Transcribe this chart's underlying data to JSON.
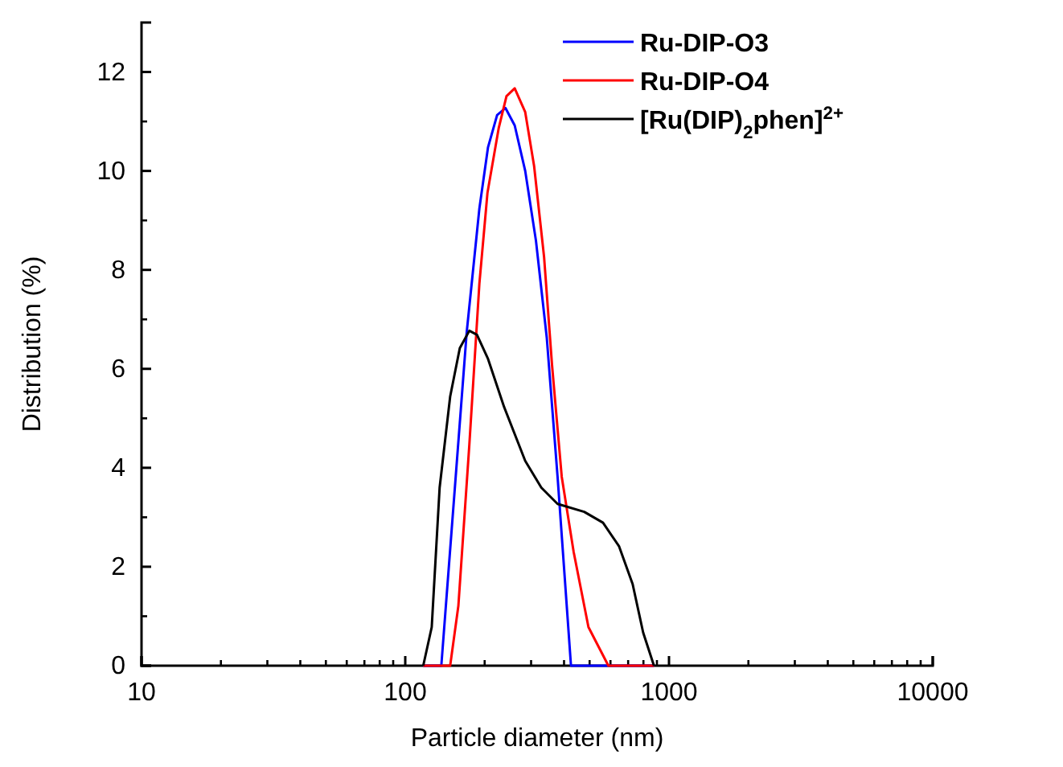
{
  "chart_data": {
    "type": "line",
    "xlabel": "Particle diameter (nm)",
    "ylabel": "Distribution (%)",
    "log": "x",
    "xlim": [
      10,
      10000
    ],
    "xticks": [
      10,
      100,
      1000,
      10000
    ],
    "ylim": [
      0,
      13
    ],
    "yticks": [
      0,
      2,
      4,
      6,
      8,
      10,
      12
    ],
    "grid": false,
    "legend": "top right",
    "marker": "none",
    "line_style": "solid",
    "series": [
      {
        "name": "Ru-DIP-O3",
        "color": "#0000ff",
        "x": [
          117,
          137,
          171,
          191,
          206,
          223,
          240,
          260,
          285,
          313,
          344,
          378,
          425,
          877
        ],
        "values": [
          0,
          0,
          6.74,
          9.24,
          10.48,
          11.13,
          11.27,
          10.92,
          10.0,
          8.59,
          6.63,
          3.82,
          0,
          0
        ]
      },
      {
        "name": "Ru-DIP-O4",
        "color": "#ff0000",
        "x": [
          117,
          148,
          159,
          175,
          191,
          205,
          226,
          242,
          260,
          285,
          308,
          336,
          360,
          392,
          435,
          495,
          589,
          877
        ],
        "values": [
          0,
          0,
          1.21,
          4.47,
          7.72,
          9.56,
          10.86,
          11.51,
          11.67,
          11.19,
          10.1,
          8.26,
          6.09,
          3.82,
          2.3,
          0.78,
          0,
          0
        ]
      },
      {
        "name": "[Ru(DIP)$_{2}$phen]$^{2+}$",
        "color": "#000000",
        "x": [
          117,
          126,
          135,
          148,
          161,
          175,
          187,
          206,
          237,
          285,
          328,
          378,
          477,
          562,
          647,
          728,
          798,
          877
        ],
        "values": [
          0,
          0.78,
          3.6,
          5.44,
          6.42,
          6.77,
          6.69,
          6.2,
          5.23,
          4.14,
          3.6,
          3.27,
          3.11,
          2.89,
          2.41,
          1.65,
          0.67,
          0
        ]
      }
    ]
  }
}
